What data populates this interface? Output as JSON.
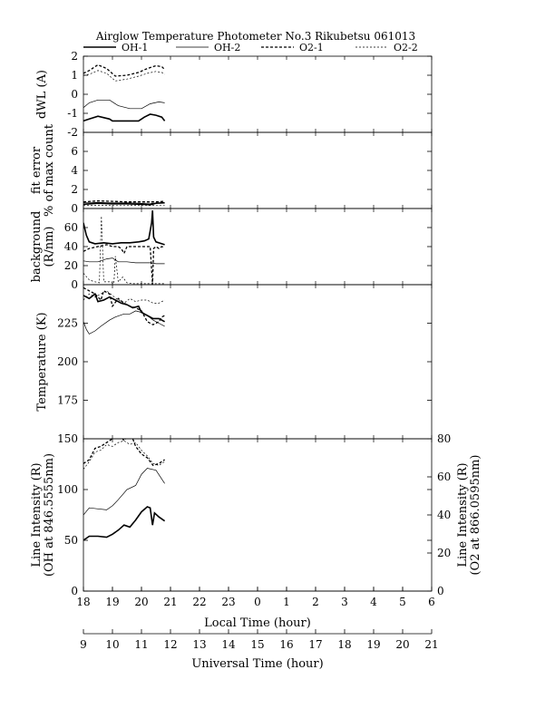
{
  "chart_data": {
    "type": "line",
    "title": "Airglow Temperature Photometer No.3  Rikubetsu   061013",
    "legend": [
      {
        "name": "OH-1",
        "style": "solid-thick"
      },
      {
        "name": "OH-2",
        "style": "solid-thin"
      },
      {
        "name": "O2-1",
        "style": "dashed-thick"
      },
      {
        "name": "O2-2",
        "style": "dashed-thin"
      }
    ],
    "x": {
      "local_label": "Local Time (hour)",
      "local_ticks": [
        "18",
        "19",
        "20",
        "21",
        "22",
        "23",
        "0",
        "1",
        "2",
        "3",
        "4",
        "5",
        "6"
      ],
      "ut_label": "Universal Time (hour)",
      "ut_ticks": [
        "9",
        "10",
        "11",
        "12",
        "13",
        "14",
        "15",
        "16",
        "17",
        "18",
        "19",
        "20",
        "21"
      ],
      "lim": [
        18,
        30
      ]
    },
    "panels": [
      {
        "id": "dwl",
        "ylabel": [
          "dWL (A)"
        ],
        "ylim": [
          -2,
          2
        ],
        "yticks": [
          "-2",
          "-1",
          "0",
          "1",
          "2"
        ],
        "series": [
          {
            "name": "OH-1",
            "x": [
              18,
              18.2,
              18.5,
              18.9,
              19.0,
              19.3,
              19.7,
              19.9,
              20.1,
              20.3,
              20.5,
              20.7,
              20.8
            ],
            "y": [
              -1.4,
              -1.3,
              -1.15,
              -1.3,
              -1.4,
              -1.4,
              -1.4,
              -1.4,
              -1.2,
              -1.05,
              -1.1,
              -1.2,
              -1.4
            ]
          },
          {
            "name": "OH-2",
            "x": [
              18,
              18.2,
              18.5,
              18.9,
              19.2,
              19.6,
              20.0,
              20.3,
              20.6,
              20.8
            ],
            "y": [
              -0.7,
              -0.45,
              -0.3,
              -0.3,
              -0.6,
              -0.75,
              -0.75,
              -0.5,
              -0.4,
              -0.45
            ]
          },
          {
            "name": "O2-1",
            "x": [
              18,
              18.2,
              18.5,
              18.8,
              19.1,
              19.5,
              19.9,
              20.2,
              20.5,
              20.7,
              20.8
            ],
            "y": [
              1.1,
              1.25,
              1.55,
              1.35,
              0.95,
              1.0,
              1.15,
              1.35,
              1.5,
              1.45,
              1.3
            ]
          },
          {
            "name": "O2-2",
            "x": [
              18,
              18.2,
              18.5,
              18.8,
              19.1,
              19.5,
              19.9,
              20.2,
              20.5,
              20.7,
              20.8
            ],
            "y": [
              1.0,
              1.05,
              1.25,
              1.1,
              0.7,
              0.8,
              0.95,
              1.1,
              1.2,
              1.15,
              1.05
            ]
          }
        ]
      },
      {
        "id": "fit",
        "ylabel": [
          "fit error",
          "% of max count"
        ],
        "ylim": [
          0,
          8
        ],
        "yticks": [
          "0",
          "2",
          "4",
          "6"
        ],
        "series": [
          {
            "name": "OH-1",
            "x": [
              18,
              18.5,
              19,
              19.5,
              20,
              20.3,
              20.5,
              20.8
            ],
            "y": [
              0.45,
              0.55,
              0.5,
              0.5,
              0.45,
              0.4,
              0.55,
              0.6
            ]
          },
          {
            "name": "OH-2",
            "x": [
              18,
              18.5,
              19,
              19.5,
              20,
              20.5,
              20.8
            ],
            "y": [
              0.6,
              0.65,
              0.6,
              0.6,
              0.55,
              0.55,
              0.55
            ]
          },
          {
            "name": "O2-1",
            "x": [
              18,
              18.5,
              19,
              19.5,
              20,
              20.5,
              20.8
            ],
            "y": [
              0.7,
              0.8,
              0.75,
              0.7,
              0.7,
              0.7,
              0.75
            ]
          },
          {
            "name": "O2-2",
            "x": [
              18,
              18.5,
              19,
              19.5,
              20,
              20.5,
              20.8
            ],
            "y": [
              0.3,
              0.35,
              0.3,
              0.3,
              0.35,
              0.3,
              0.3
            ]
          }
        ]
      },
      {
        "id": "background",
        "ylabel": [
          "background",
          "(R/nm)"
        ],
        "ylim": [
          0,
          80
        ],
        "yticks": [
          "0",
          "20",
          "40",
          "60"
        ],
        "series": [
          {
            "name": "OH-1",
            "x": [
              18,
              18.1,
              18.2,
              18.4,
              18.7,
              19.0,
              19.3,
              19.6,
              19.9,
              20.1,
              20.25,
              20.35,
              20.38,
              20.42,
              20.5,
              20.7,
              20.8
            ],
            "y": [
              65,
              52,
              45,
              43,
              44,
              43,
              44,
              44,
              45,
              46,
              48,
              65,
              78,
              50,
              45,
              43,
              42
            ]
          },
          {
            "name": "OH-2",
            "x": [
              18,
              18.2,
              18.5,
              18.8,
              19.0,
              19.2,
              19.5,
              19.8,
              20.0,
              20.3,
              20.5,
              20.8
            ],
            "y": [
              25,
              24,
              24,
              27,
              28,
              24,
              24,
              23,
              23,
              23,
              22,
              22
            ]
          },
          {
            "name": "O2-1",
            "x": [
              18,
              18.2,
              18.5,
              18.8,
              19.0,
              19.2,
              19.3,
              19.4,
              19.5,
              19.7,
              19.9,
              20.1,
              20.3,
              20.38,
              20.42,
              20.5,
              20.6,
              20.7,
              20.8
            ],
            "y": [
              35,
              38,
              40,
              42,
              40,
              40,
              38,
              33,
              40,
              40,
              40,
              40,
              40,
              0,
              38,
              40,
              38,
              40,
              39
            ]
          },
          {
            "name": "O2-2",
            "x": [
              18,
              18.2,
              18.4,
              18.55,
              18.62,
              18.7,
              18.9,
              19.05,
              19.1,
              19.2,
              19.35,
              19.5,
              19.7,
              20.0,
              20.3,
              20.5,
              20.8
            ],
            "y": [
              12,
              5,
              3,
              2,
              72,
              3,
              3,
              1,
              30,
              3,
              8,
              2,
              1,
              1,
              1,
              1,
              1
            ]
          }
        ]
      },
      {
        "id": "temperature",
        "ylabel": [
          "Temperature (K)"
        ],
        "ylim": [
          150,
          250
        ],
        "yticks": [
          "175",
          "200",
          "225"
        ],
        "series": [
          {
            "name": "OH-1",
            "x": [
              18,
              18.2,
              18.4,
              18.5,
              18.7,
              18.9,
              19.1,
              19.3,
              19.5,
              19.7,
              19.9,
              20.0,
              20.2,
              20.4,
              20.6,
              20.8
            ],
            "y": [
              243,
              241,
              244,
              239,
              240,
              242,
              240,
              238,
              237,
              235,
              236,
              232,
              230,
              228,
              228,
              226
            ]
          },
          {
            "name": "OH-2",
            "x": [
              18,
              18.1,
              18.2,
              18.4,
              18.6,
              18.9,
              19.1,
              19.4,
              19.6,
              19.8,
              20.0,
              20.2,
              20.4,
              20.6,
              20.8
            ],
            "y": [
              226,
              221,
              218,
              220,
              223,
              227,
              229,
              231,
              231,
              233,
              232,
              230,
              227,
              225,
              223
            ]
          },
          {
            "name": "O2-1",
            "x": [
              18,
              18.2,
              18.4,
              18.6,
              18.7,
              18.9,
              19.0,
              19.2,
              19.4,
              19.6,
              19.8,
              20.0,
              20.2,
              20.4,
              20.6,
              20.7,
              20.8
            ],
            "y": [
              248,
              246,
              244,
              240,
              246,
              244,
              236,
              241,
              238,
              236,
              235,
              233,
              226,
              224,
              226,
              229,
              230
            ]
          },
          {
            "name": "O2-2",
            "x": [
              18,
              18.2,
              18.4,
              18.6,
              18.8,
              19.0,
              19.2,
              19.4,
              19.6,
              19.8,
              20.0,
              20.2,
              20.4,
              20.6,
              20.8
            ],
            "y": [
              240,
              244,
              242,
              244,
              246,
              243,
              240,
              238,
              241,
              239,
              240,
              240,
              238,
              238,
              240
            ]
          }
        ]
      },
      {
        "id": "intensity",
        "ylabel": [
          "Line Intensity (R)",
          "(OH at 846.5555nm)"
        ],
        "ylabel_right": [
          "Line Intensity (R)",
          "(O2 at 866.0595nm)"
        ],
        "ylim": [
          0,
          150
        ],
        "ylim_right": [
          0,
          80
        ],
        "yticks": [
          "0",
          "50",
          "100",
          "150"
        ],
        "yticks_right": [
          "0",
          "20",
          "40",
          "60",
          "80"
        ],
        "series": [
          {
            "name": "OH-1",
            "axis": "left",
            "x": [
              18,
              18.2,
              18.5,
              18.8,
              19.0,
              19.2,
              19.4,
              19.6,
              19.8,
              20.0,
              20.2,
              20.3,
              20.38,
              20.45,
              20.6,
              20.8
            ],
            "y": [
              50,
              54,
              54,
              53,
              56,
              60,
              65,
              63,
              70,
              78,
              83,
              82,
              65,
              77,
              73,
              69
            ]
          },
          {
            "name": "OH-2",
            "axis": "left",
            "x": [
              18,
              18.2,
              18.5,
              18.8,
              19.0,
              19.2,
              19.5,
              19.8,
              20.0,
              20.2,
              20.5,
              20.8
            ],
            "y": [
              75,
              82,
              81,
              80,
              84,
              90,
              100,
              104,
              115,
              121,
              119,
              106
            ]
          },
          {
            "name": "O2-1",
            "axis": "right",
            "x": [
              18,
              18.2,
              18.4,
              18.6,
              18.8,
              19.0,
              19.2,
              19.4,
              19.6,
              19.8,
              20.0,
              20.2,
              20.4,
              20.6,
              20.8
            ],
            "y": [
              67,
              69,
              75,
              76,
              78,
              80,
              83,
              79,
              84,
              76,
              72,
              70,
              66,
              67,
              69
            ]
          },
          {
            "name": "O2-2",
            "axis": "right",
            "x": [
              18,
              18.2,
              18.4,
              18.6,
              18.8,
              19.0,
              19.2,
              19.4,
              19.6,
              19.8,
              20.0,
              20.2,
              20.4,
              20.6,
              20.8
            ],
            "y": [
              64,
              68,
              73,
              74,
              77,
              76,
              78,
              79,
              77,
              78,
              74,
              71,
              67,
              66,
              68
            ]
          }
        ]
      }
    ]
  }
}
